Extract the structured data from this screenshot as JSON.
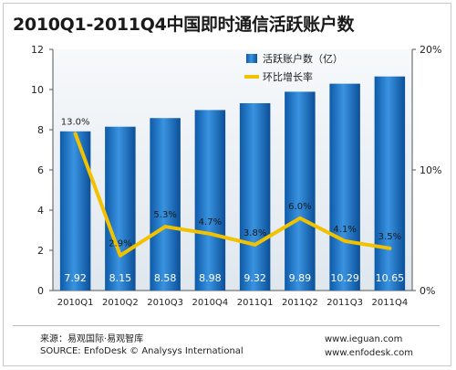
{
  "title": "2010Q1-2011Q4中国即时通信活跃账户数",
  "footer": {
    "source_cn": "来源：易观国际·易观智库",
    "source_en": "SOURCE: EnfoDesk © Analysys International",
    "url1": "www.ieguan.com",
    "url2": "www.enfodesk.com"
  },
  "chart_data": {
    "type": "bar",
    "categories": [
      "2010Q1",
      "2010Q2",
      "2010Q3",
      "2010Q4",
      "2011Q1",
      "2011Q2",
      "2011Q3",
      "2011Q4"
    ],
    "series": [
      {
        "name": "活跃账户数（亿）",
        "type": "bar",
        "axis": "left",
        "values": [
          7.92,
          8.15,
          8.58,
          8.98,
          9.32,
          9.89,
          10.29,
          10.65
        ],
        "labels": [
          "7.92",
          "8.15",
          "8.58",
          "8.98",
          "9.32",
          "9.89",
          "10.29",
          "10.65"
        ],
        "color": "#1f77c8"
      },
      {
        "name": "环比增长率",
        "type": "line",
        "axis": "right",
        "values": [
          13.0,
          2.9,
          5.3,
          4.7,
          3.8,
          6.0,
          4.1,
          3.5
        ],
        "labels": [
          "13.0%",
          "2.9%",
          "5.3%",
          "4.7%",
          "3.8%",
          "6.0%",
          "4.1%",
          "3.5%"
        ],
        "color": "#f2c200"
      }
    ],
    "y_left": {
      "range": [
        0,
        12
      ],
      "ticks": [
        "0",
        "2",
        "4",
        "6",
        "8",
        "10",
        "12"
      ]
    },
    "y_right": {
      "range": [
        0,
        20
      ],
      "ticks": [
        "0%",
        "10%",
        "20%"
      ]
    },
    "legend": "top-right",
    "grid": false
  }
}
